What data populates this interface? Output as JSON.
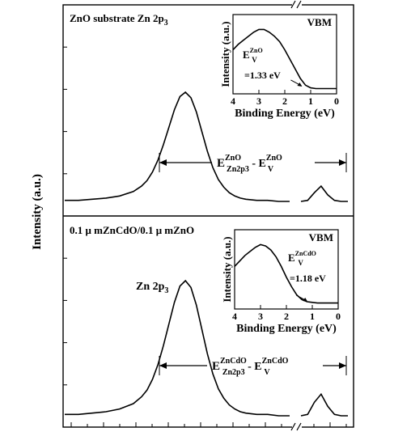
{
  "y_axis_label": "Intensity (a.u.)",
  "colors": {
    "ink": "#000000",
    "background": "#ffffff"
  },
  "chart_data": [
    {
      "type": "line",
      "panel": "top",
      "title": "ZnO substrate Zn 2p",
      "title_sub": "3",
      "ylabel": "Intensity (a.u.)",
      "grid": false,
      "axis_break": true,
      "series": [
        {
          "x": [
            0.0,
            0.05,
            0.1,
            0.15,
            0.2,
            0.25,
            0.28,
            0.3,
            0.32,
            0.34,
            0.36,
            0.38,
            0.4,
            0.42,
            0.44,
            0.46,
            0.48,
            0.5,
            0.52,
            0.54,
            0.56,
            0.58,
            0.6,
            0.62,
            0.64,
            0.66,
            0.7,
            0.74,
            0.78,
            0.82
          ],
          "y": [
            0.01,
            0.01,
            0.02,
            0.03,
            0.05,
            0.09,
            0.14,
            0.19,
            0.27,
            0.38,
            0.52,
            0.68,
            0.84,
            0.96,
            1.0,
            0.95,
            0.82,
            0.64,
            0.46,
            0.31,
            0.2,
            0.13,
            0.08,
            0.05,
            0.03,
            0.02,
            0.01,
            0.01,
            0.0,
            0.0
          ]
        },
        {
          "x": [
            0.86,
            0.88,
            0.9,
            0.92,
            0.94,
            0.96,
            0.98,
            1.0
          ],
          "y": [
            0.0,
            0.01,
            0.08,
            0.14,
            0.06,
            0.01,
            0.0,
            0.0
          ]
        }
      ],
      "annotation": {
        "main": "E",
        "sup1": "ZnO",
        "sub1": "Zn2p3",
        "dash": " - E",
        "sup2": "ZnO",
        "sub2": "V"
      },
      "inset": {
        "type": "line",
        "title": "VBM",
        "xlabel": "Binding Energy (eV)",
        "ylabel": "Intensity (a.u.)",
        "xlim": [
          4,
          0
        ],
        "xticks": [
          "4",
          "3",
          "2",
          "1",
          "0"
        ],
        "label_e": "E",
        "label_e_sub": "V",
        "label_e_sup": "ZnO",
        "value_label": "=1.33 eV",
        "onset_eV": 1.33,
        "x": [
          4.0,
          3.8,
          3.6,
          3.4,
          3.2,
          3.0,
          2.8,
          2.6,
          2.4,
          2.2,
          2.0,
          1.8,
          1.6,
          1.4,
          1.2,
          1.0,
          0.8,
          0.6,
          0.4,
          0.2,
          0.0
        ],
        "y": [
          0.6,
          0.68,
          0.74,
          0.8,
          0.86,
          0.9,
          0.9,
          0.86,
          0.8,
          0.72,
          0.6,
          0.46,
          0.32,
          0.18,
          0.08,
          0.04,
          0.03,
          0.03,
          0.03,
          0.03,
          0.03
        ]
      }
    },
    {
      "type": "line",
      "panel": "bottom",
      "title": "0.1 μ mZnCdO/0.1 μ mZnO",
      "peak_label": "Zn 2p",
      "peak_label_sub": "3",
      "grid": false,
      "axis_break": true,
      "series": [
        {
          "x": [
            0.0,
            0.05,
            0.1,
            0.15,
            0.2,
            0.25,
            0.28,
            0.3,
            0.32,
            0.34,
            0.36,
            0.38,
            0.4,
            0.42,
            0.44,
            0.46,
            0.48,
            0.5,
            0.52,
            0.54,
            0.56,
            0.58,
            0.6,
            0.62,
            0.64,
            0.66,
            0.7,
            0.74,
            0.78,
            0.82
          ],
          "y": [
            0.01,
            0.01,
            0.02,
            0.03,
            0.05,
            0.09,
            0.14,
            0.19,
            0.27,
            0.38,
            0.52,
            0.68,
            0.84,
            0.96,
            1.0,
            0.95,
            0.82,
            0.64,
            0.46,
            0.31,
            0.2,
            0.13,
            0.08,
            0.05,
            0.03,
            0.02,
            0.01,
            0.01,
            0.0,
            0.0
          ]
        },
        {
          "x": [
            0.86,
            0.88,
            0.9,
            0.92,
            0.94,
            0.96,
            0.98,
            1.0
          ],
          "y": [
            0.0,
            0.01,
            0.1,
            0.16,
            0.07,
            0.01,
            0.0,
            0.0
          ]
        }
      ],
      "annotation": {
        "main": "E",
        "sup1": "ZnCdO",
        "sub1": "Zn2p3",
        "dash": " - E",
        "sup2": "ZnCdO",
        "sub2": "V"
      },
      "inset": {
        "type": "line",
        "title": "VBM",
        "xlabel": "Binding Energy (eV)",
        "ylabel": "Intensity (a.u.)",
        "xlim": [
          4,
          0
        ],
        "xticks": [
          "4",
          "3",
          "2",
          "1",
          "0"
        ],
        "label_e": "E",
        "label_e_sub": "V",
        "label_e_sup": "ZnCdO",
        "value_label": "=1.18 eV",
        "onset_eV": 1.18,
        "x": [
          4.0,
          3.8,
          3.6,
          3.4,
          3.2,
          3.0,
          2.8,
          2.6,
          2.4,
          2.2,
          2.0,
          1.8,
          1.6,
          1.4,
          1.2,
          1.0,
          0.8,
          0.6,
          0.4,
          0.2,
          0.0
        ],
        "y": [
          0.58,
          0.66,
          0.74,
          0.8,
          0.86,
          0.9,
          0.88,
          0.82,
          0.72,
          0.58,
          0.42,
          0.28,
          0.16,
          0.09,
          0.06,
          0.05,
          0.04,
          0.04,
          0.04,
          0.04,
          0.04
        ]
      }
    }
  ]
}
